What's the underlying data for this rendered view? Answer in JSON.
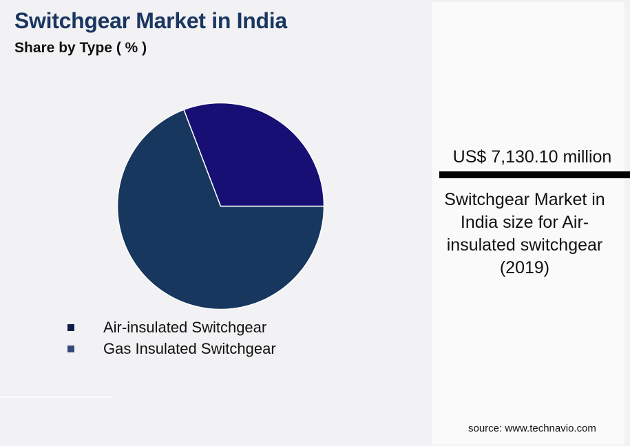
{
  "header": {
    "title": "Switchgear Market in India",
    "subtitle": "Share by Type ( % )"
  },
  "legend": {
    "items": [
      {
        "label": "Air-insulated Switchgear",
        "color": "#0e1f45"
      },
      {
        "label": "Gas Insulated Switchgear",
        "color": "#344a7a"
      }
    ]
  },
  "kpi": {
    "value": "US$ 7,130.10 million",
    "description": "Switchgear Market in India size for Air-insulated switchgear (2019)"
  },
  "footer": {
    "source": "source: www.technavio.com"
  },
  "colors": {
    "title": "#1a3661",
    "background": "#f2f2f4",
    "panel": "#fafafa",
    "slice_air": "#17375e",
    "slice_gas": "#170f74"
  },
  "chart_data": {
    "type": "pie",
    "title": "Switchgear Market in India",
    "subtitle": "Share by Type ( % )",
    "categories": [
      "Air-insulated Switchgear",
      "Gas Insulated Switchgear"
    ],
    "values": [
      69.2,
      30.8
    ],
    "colors": [
      "#17375e",
      "#170f74"
    ],
    "start_angle_deg": 90,
    "legend_position": "bottom-left",
    "annotation": "US$ 7,130.10 million - Switchgear Market in India size for Air-insulated switchgear (2019)"
  }
}
